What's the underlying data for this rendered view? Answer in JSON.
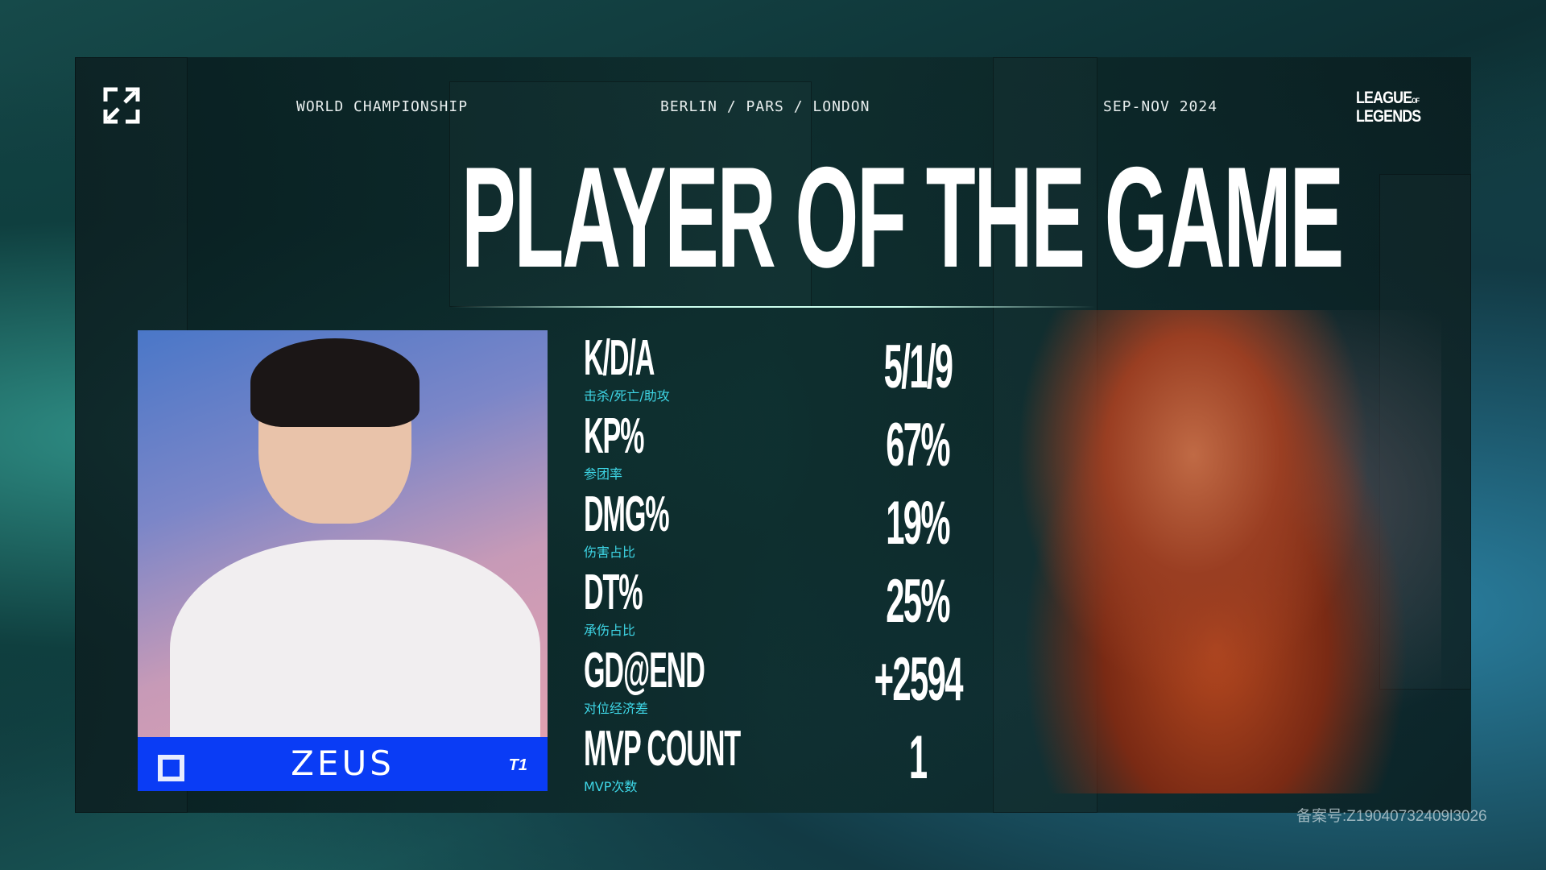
{
  "header": {
    "event": "WORLD CHAMPIONSHIP",
    "cities": "BERLIN / PARS / LONDON",
    "dates": "SEP-NOV 2024",
    "brand_line1": "LEAGUE",
    "brand_of": "OF",
    "brand_line2": "LEGENDS"
  },
  "title": "PLAYER OF THE GAME",
  "player": {
    "name": "ZEUS",
    "team_logo": "T1",
    "accent": "#0a3cf5"
  },
  "stats": [
    {
      "label": "K/D/A",
      "sub": "击杀/死亡/助攻",
      "value": "5/1/9"
    },
    {
      "label": "KP%",
      "sub": "参团率",
      "value": "67%"
    },
    {
      "label": "DMG%",
      "sub": "伤害占比",
      "value": "19%"
    },
    {
      "label": "DT%",
      "sub": "承伤占比",
      "value": "25%"
    },
    {
      "label": "GD@END",
      "sub": "对位经济差",
      "value": "+2594"
    },
    {
      "label": "MVP COUNT",
      "sub": "MVP次数",
      "value": "1"
    }
  ],
  "watermark": "备案号:Z19040732409l3026"
}
